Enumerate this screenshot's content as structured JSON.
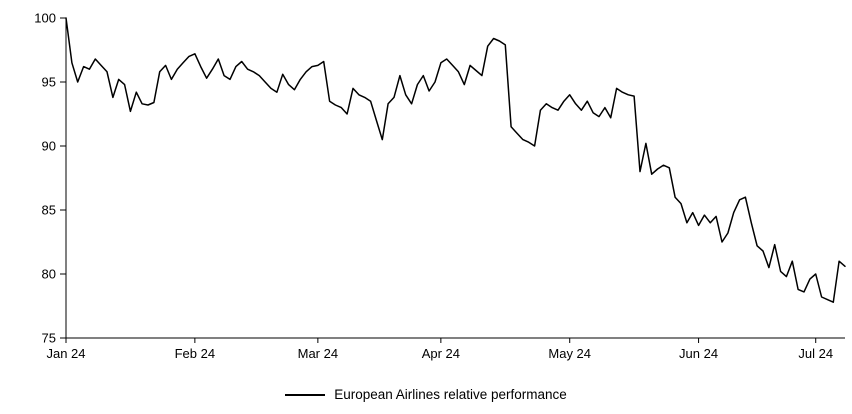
{
  "chart_data": {
    "type": "line",
    "title": "",
    "xlabel": "",
    "ylabel": "",
    "legend": "European Airlines relative performance",
    "legend_position": "bottom",
    "grid": false,
    "line_color": "#000000",
    "axis_color": "#000000",
    "ylim": [
      75,
      100
    ],
    "y_ticks": [
      75,
      80,
      85,
      90,
      95,
      100
    ],
    "x_tick_labels": [
      "Jan 24",
      "Feb 24",
      "Mar 24",
      "Apr 24",
      "May 24",
      "Jun 24",
      "Jul 24"
    ],
    "x_tick_indices": [
      0,
      22,
      43,
      64,
      86,
      108,
      128
    ],
    "values": [
      100,
      96.5,
      95.0,
      96.2,
      96.0,
      96.8,
      96.3,
      95.8,
      93.8,
      95.2,
      94.8,
      92.7,
      94.2,
      93.3,
      93.2,
      93.4,
      95.8,
      96.3,
      95.2,
      96.0,
      96.5,
      97.0,
      97.2,
      96.2,
      95.3,
      96.0,
      96.8,
      95.5,
      95.2,
      96.2,
      96.6,
      96.0,
      95.8,
      95.5,
      95.0,
      94.5,
      94.2,
      95.6,
      94.8,
      94.4,
      95.2,
      95.8,
      96.2,
      96.3,
      96.6,
      93.5,
      93.2,
      93.0,
      92.5,
      94.5,
      94.0,
      93.8,
      93.5,
      92.0,
      90.5,
      93.3,
      93.8,
      95.5,
      94.0,
      93.3,
      94.8,
      95.5,
      94.3,
      95.0,
      96.5,
      96.8,
      96.3,
      95.8,
      94.8,
      96.3,
      95.9,
      95.5,
      97.8,
      98.4,
      98.2,
      97.9,
      91.5,
      91.0,
      90.5,
      90.3,
      90.0,
      92.8,
      93.3,
      93.0,
      92.8,
      93.5,
      94.0,
      93.3,
      92.8,
      93.5,
      92.6,
      92.3,
      93.0,
      92.2,
      94.5,
      94.2,
      94.0,
      93.9,
      88.0,
      90.2,
      87.8,
      88.2,
      88.5,
      88.3,
      86.0,
      85.5,
      84.0,
      84.8,
      83.8,
      84.6,
      84.0,
      84.5,
      82.5,
      83.2,
      84.8,
      85.8,
      86.0,
      84.0,
      82.2,
      81.8,
      80.5,
      82.3,
      80.2,
      79.8,
      81.0,
      78.8,
      78.6,
      79.6,
      80.0,
      78.2,
      78.0,
      77.8,
      81.0,
      80.6
    ]
  }
}
